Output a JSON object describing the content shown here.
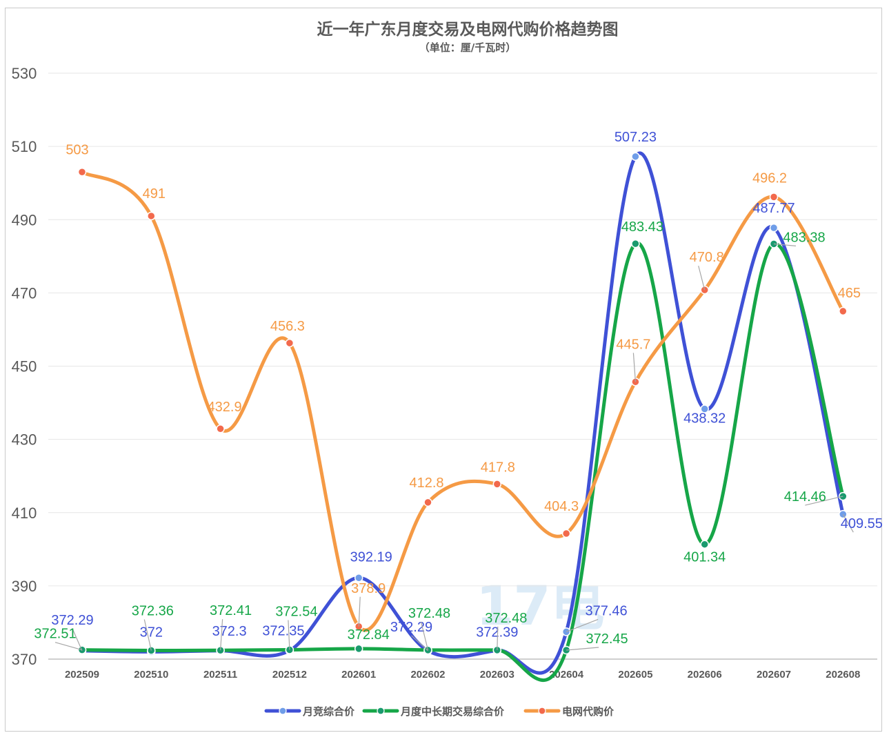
{
  "chart_data": {
    "type": "line",
    "smooth": true,
    "title": "近一年广东月度交易及电网代购价格趋势图",
    "subtitle": "（单位：厘/千瓦时）",
    "categories": [
      "202509",
      "202510",
      "202511",
      "202512",
      "202601",
      "202602",
      "202603",
      "202604",
      "202605",
      "202606",
      "202607",
      "202608"
    ],
    "ylim": [
      370,
      530
    ],
    "yticks": [
      370,
      390,
      410,
      430,
      450,
      470,
      490,
      510,
      530
    ],
    "grid": true,
    "legend_position": "bottom",
    "watermark": "17电",
    "series": [
      {
        "name": "月竞综合价",
        "color": "#3f51d6",
        "marker_color": "#6f9de8",
        "values": [
          372.29,
          372,
          372.3,
          372.35,
          392.19,
          372.29,
          372.39,
          377.46,
          507.23,
          438.32,
          487.77,
          409.55
        ],
        "labels": [
          "372.29",
          "372",
          "372.3",
          "372.35",
          "392.19",
          "372.29",
          "372.39",
          "377.46",
          "507.23",
          "438.32",
          "487.77",
          "409.55"
        ]
      },
      {
        "name": "月度中长期交易综合价",
        "color": "#16a648",
        "marker_color": "#1a9a6e",
        "values": [
          372.51,
          372.36,
          372.41,
          372.54,
          372.84,
          372.48,
          372.48,
          372.45,
          483.43,
          401.34,
          483.38,
          414.46
        ],
        "labels": [
          "372.51",
          "372.36",
          "372.41",
          "372.54",
          "372.84",
          "372.48",
          "372.48",
          "372.45",
          "483.43",
          "401.34",
          "483.38",
          "414.46"
        ]
      },
      {
        "name": "电网代购价",
        "color": "#f59a45",
        "marker_color": "#f2694c",
        "values": [
          503,
          491,
          432.9,
          456.3,
          378.9,
          412.8,
          417.8,
          404.3,
          445.7,
          470.8,
          496.2,
          465
        ],
        "labels": [
          "503",
          "491",
          "432.9",
          "456.3",
          "378.9",
          "412.8",
          "417.8",
          "404.3",
          "445.7",
          "470.8",
          "496.2",
          "465"
        ]
      }
    ]
  }
}
